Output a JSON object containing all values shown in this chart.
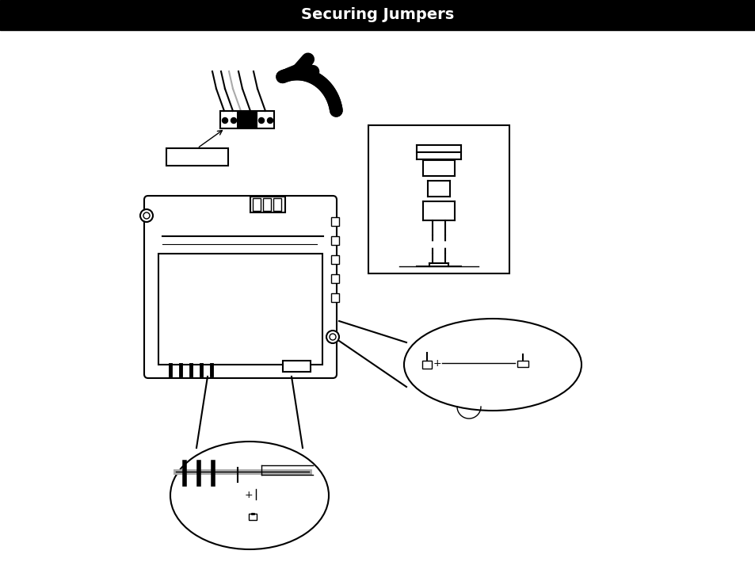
{
  "title_text": "Securing Jumpers",
  "title_bg": "#000000",
  "title_fg": "#ffffff",
  "bg_color": "#ffffff",
  "line_color": "#000000",
  "fig_width": 9.54,
  "fig_height": 7.38,
  "dpi": 100
}
